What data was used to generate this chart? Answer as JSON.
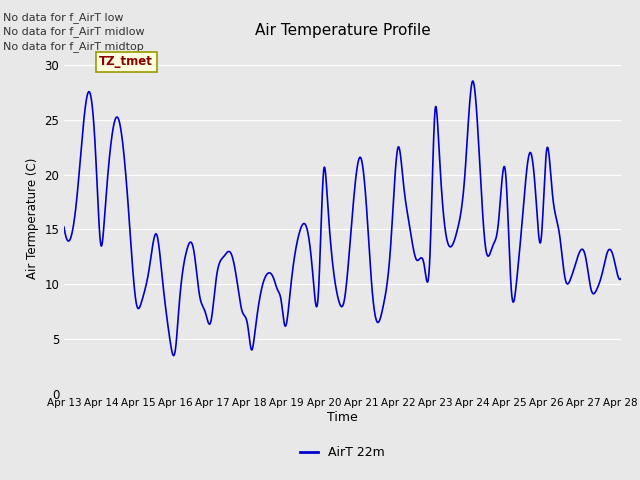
{
  "title": "Air Temperature Profile",
  "xlabel": "Time",
  "ylabel": "Air Termperature (C)",
  "legend_label": "AirT 22m",
  "legend_color": "#0000cc",
  "background_color": "#e8e8e8",
  "line_color": "#0000cc",
  "ylim": [
    0,
    32
  ],
  "yticks": [
    0,
    5,
    10,
    15,
    20,
    25,
    30
  ],
  "no_data_texts": [
    "No data for f_AirT low",
    "No data for f_AirT midlow",
    "No data for f_AirT midtop"
  ],
  "tz_label": "TZ_tmet",
  "x_tick_labels": [
    "Apr 13",
    "Apr 14",
    "Apr 15",
    "Apr 16",
    "Apr 17",
    "Apr 18",
    "Apr 19",
    "Apr 20",
    "Apr 21",
    "Apr 22",
    "Apr 23",
    "Apr 24",
    "Apr 25",
    "Apr 26",
    "Apr 27",
    "Apr 28"
  ],
  "key_points": [
    [
      0.0,
      15.2
    ],
    [
      0.15,
      14.0
    ],
    [
      0.35,
      18.0
    ],
    [
      0.65,
      27.5
    ],
    [
      0.85,
      22.0
    ],
    [
      1.0,
      13.5
    ],
    [
      1.1,
      16.5
    ],
    [
      1.45,
      25.2
    ],
    [
      1.75,
      16.2
    ],
    [
      1.95,
      8.2
    ],
    [
      2.1,
      8.5
    ],
    [
      2.3,
      11.5
    ],
    [
      2.5,
      14.5
    ],
    [
      2.65,
      10.5
    ],
    [
      2.85,
      5.0
    ],
    [
      3.0,
      4.0
    ],
    [
      3.1,
      8.0
    ],
    [
      3.3,
      13.0
    ],
    [
      3.5,
      13.0
    ],
    [
      3.65,
      9.0
    ],
    [
      3.8,
      7.5
    ],
    [
      3.95,
      6.5
    ],
    [
      4.1,
      10.5
    ],
    [
      4.3,
      12.5
    ],
    [
      4.5,
      12.8
    ],
    [
      4.65,
      10.5
    ],
    [
      4.8,
      7.5
    ],
    [
      4.95,
      6.2
    ],
    [
      5.05,
      4.0
    ],
    [
      5.15,
      5.8
    ],
    [
      5.3,
      9.2
    ],
    [
      5.5,
      11.0
    ],
    [
      5.65,
      10.5
    ],
    [
      5.75,
      9.5
    ],
    [
      5.85,
      8.5
    ],
    [
      5.95,
      6.2
    ],
    [
      6.1,
      9.5
    ],
    [
      6.35,
      14.8
    ],
    [
      6.55,
      15.0
    ],
    [
      6.7,
      11.0
    ],
    [
      6.85,
      9.0
    ],
    [
      7.0,
      20.5
    ],
    [
      7.1,
      17.5
    ],
    [
      7.25,
      11.5
    ],
    [
      7.4,
      8.5
    ],
    [
      7.55,
      8.5
    ],
    [
      7.7,
      13.5
    ],
    [
      8.0,
      21.5
    ],
    [
      8.15,
      17.0
    ],
    [
      8.3,
      9.5
    ],
    [
      8.45,
      6.5
    ],
    [
      8.6,
      8.0
    ],
    [
      8.8,
      13.5
    ],
    [
      9.0,
      22.5
    ],
    [
      9.15,
      19.0
    ],
    [
      9.3,
      15.5
    ],
    [
      9.5,
      12.2
    ],
    [
      9.7,
      11.8
    ],
    [
      9.85,
      12.0
    ],
    [
      10.0,
      26.0
    ],
    [
      10.1,
      22.5
    ],
    [
      10.25,
      15.5
    ],
    [
      10.45,
      13.5
    ],
    [
      10.6,
      15.0
    ],
    [
      10.8,
      20.0
    ],
    [
      11.0,
      28.5
    ],
    [
      11.15,
      24.0
    ],
    [
      11.35,
      13.5
    ],
    [
      11.55,
      13.5
    ],
    [
      11.7,
      15.5
    ],
    [
      11.9,
      20.0
    ],
    [
      12.05,
      9.5
    ],
    [
      12.2,
      10.5
    ],
    [
      12.35,
      16.0
    ],
    [
      12.55,
      22.0
    ],
    [
      12.7,
      18.5
    ],
    [
      12.85,
      14.0
    ],
    [
      13.0,
      22.2
    ],
    [
      13.15,
      18.5
    ],
    [
      13.35,
      14.5
    ],
    [
      13.5,
      10.5
    ],
    [
      13.65,
      10.5
    ],
    [
      13.75,
      11.5
    ],
    [
      13.9,
      13.0
    ],
    [
      14.05,
      12.5
    ],
    [
      14.2,
      9.5
    ],
    [
      14.35,
      9.5
    ],
    [
      14.5,
      11.0
    ],
    [
      14.65,
      13.0
    ],
    [
      14.8,
      12.5
    ],
    [
      14.95,
      10.5
    ],
    [
      15.0,
      10.5
    ]
  ]
}
